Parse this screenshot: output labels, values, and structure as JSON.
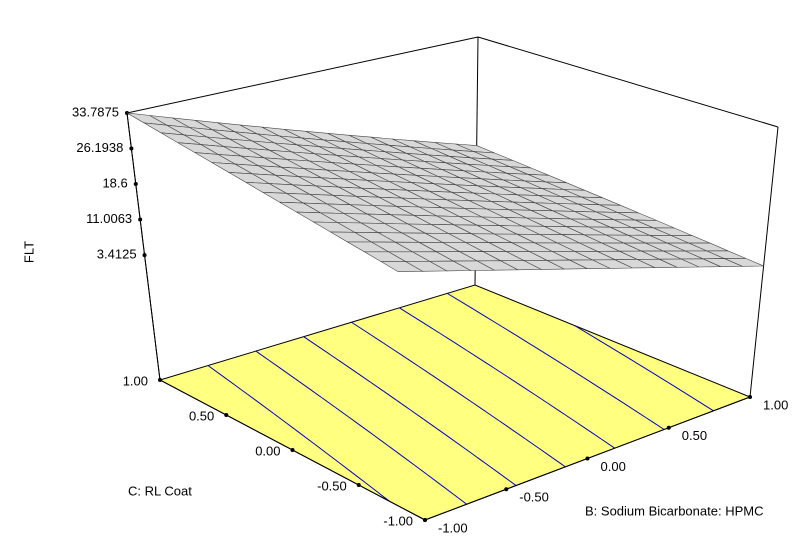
{
  "chart_data": {
    "type": "surface",
    "zlabel": "FLT",
    "ylabel": "C: RL Coat",
    "xlabel": "B: Sodium Bicarbonate: HPMC",
    "x": [
      -1,
      -0.5,
      0,
      0.5,
      1
    ],
    "y": [
      -1,
      -0.5,
      0,
      0.5,
      1
    ],
    "z": [
      [
        29.4,
        23.15,
        16.9,
        10.65,
        4.4
      ],
      [
        30.5,
        24.25,
        18.0,
        11.75,
        5.5
      ],
      [
        31.6,
        25.35,
        19.1,
        12.85,
        6.6
      ],
      [
        32.7,
        26.45,
        20.2,
        13.95,
        7.7
      ],
      [
        33.8,
        27.55,
        21.3,
        15.05,
        8.8
      ]
    ],
    "xlim": [
      -1,
      1
    ],
    "ylim": [
      -1,
      1
    ],
    "zlim": [
      -23.3,
      33.7875
    ],
    "xticks": [
      {
        "value": -1,
        "label": "-1.00"
      },
      {
        "value": -0.5,
        "label": "-0.50"
      },
      {
        "value": 0,
        "label": "0.00"
      },
      {
        "value": 0.5,
        "label": "0.50"
      },
      {
        "value": 1,
        "label": "1.00"
      }
    ],
    "yticks": [
      {
        "value": -1,
        "label": "-1.00"
      },
      {
        "value": -0.5,
        "label": "-0.50"
      },
      {
        "value": 0,
        "label": "0.00"
      },
      {
        "value": 0.5,
        "label": "0.50"
      },
      {
        "value": 1,
        "label": "1.00"
      }
    ],
    "zticks": [
      3.4125,
      11.0063,
      18.6,
      26.1938,
      33.7875
    ],
    "surface_color": "#d8d8d8",
    "floor_color": "#ffff80",
    "contour_color": "#0000c0"
  }
}
